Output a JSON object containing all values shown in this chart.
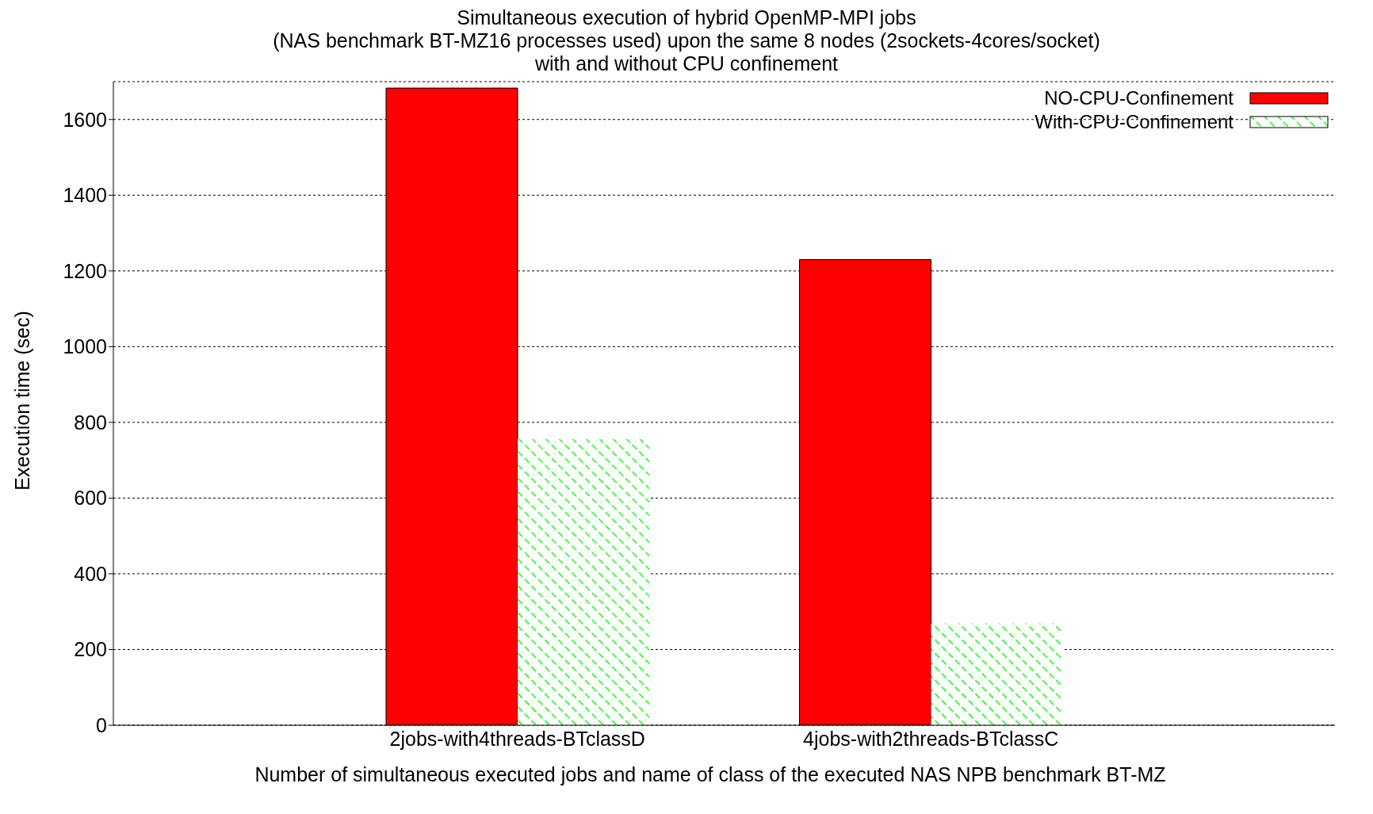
{
  "chart_data": {
    "type": "bar",
    "title": "Simultaneous execution of hybrid OpenMP-MPI jobs",
    "subtitle": "(NAS benchmark BT-MZ16 processes used) upon the same 8 nodes (2sockets-4cores/socket)\nwith and without CPU confinement",
    "xlabel": "Number of simultaneous executed jobs and name of class of the executed NAS NPB benchmark BT-MZ",
    "ylabel": "Execution time (sec)",
    "categories": [
      "2jobs-with4threads-BTclassD",
      "4jobs-with2threads-BTclassC"
    ],
    "series": [
      {
        "name": "NO-CPU-Confinement",
        "color": "#ff0000",
        "values": [
          1683,
          1230
        ]
      },
      {
        "name": "With-CPU-Confinement",
        "color": "#00ff00",
        "values": [
          756,
          269
        ]
      }
    ],
    "ylim": [
      0,
      1700
    ],
    "yticks": [
      0,
      200,
      400,
      600,
      800,
      1000,
      1200,
      1400,
      1600
    ],
    "grid": "y",
    "legend": "top right"
  }
}
